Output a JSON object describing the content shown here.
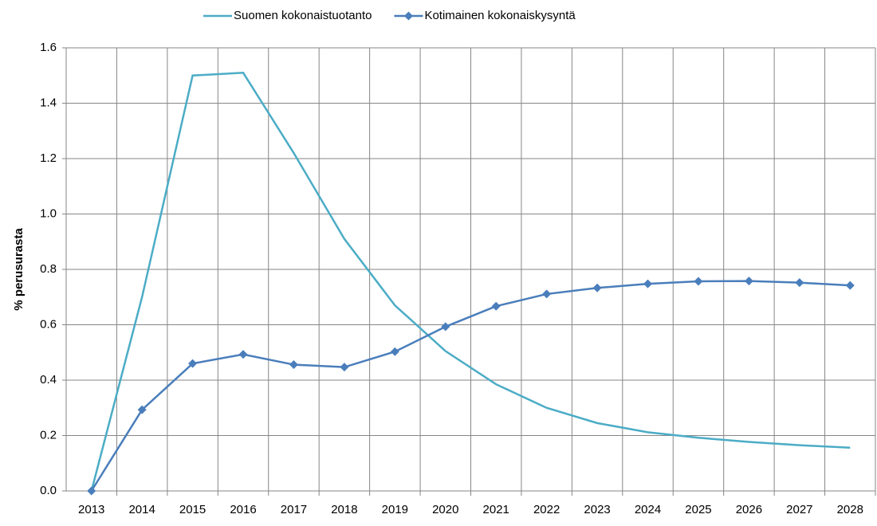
{
  "chart_data": {
    "type": "line",
    "y_label": "% perusurasta",
    "categories": [
      "2013",
      "2014",
      "2015",
      "2016",
      "2017",
      "2018",
      "2019",
      "2020",
      "2021",
      "2022",
      "2023",
      "2024",
      "2025",
      "2026",
      "2027",
      "2028"
    ],
    "series": [
      {
        "name": "Suomen kokonaistuotanto",
        "color": "#4bacc6",
        "marker": "none",
        "values": [
          0,
          0.7,
          1.5,
          1.51,
          1.22,
          0.91,
          0.67,
          0.505,
          0.385,
          0.3,
          0.245,
          0.212,
          0.192,
          0.177,
          0.165,
          0.156
        ]
      },
      {
        "name": "Kotimainen kokonaiskysyntä",
        "color": "#4a7ebb",
        "marker": "diamond",
        "values": [
          0,
          0.293,
          0.46,
          0.493,
          0.456,
          0.447,
          0.503,
          0.593,
          0.667,
          0.711,
          0.733,
          0.748,
          0.757,
          0.758,
          0.752,
          0.742
        ]
      }
    ],
    "ylim": [
      0,
      1.6
    ],
    "yticks": [
      {
        "value": 0,
        "label": "0.0"
      },
      0.2,
      0.4,
      0.6,
      0.8,
      {
        "value": 1,
        "label": "1.0"
      },
      1.2,
      1.4,
      1.6
    ],
    "grid": true,
    "legend": "top"
  }
}
